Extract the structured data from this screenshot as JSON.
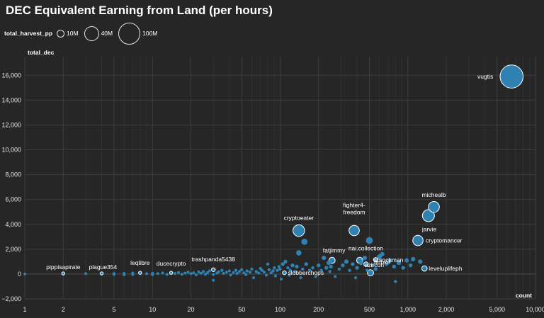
{
  "chart_data": {
    "type": "scatter",
    "title": "DEC Equivalent Earning from Land (per hours)",
    "xlabel": "count",
    "ylabel": "total_dec",
    "x_scale": "log",
    "xlim": [
      1,
      10000
    ],
    "ylim": [
      -2000,
      17500
    ],
    "x_ticks": [
      1,
      2,
      5,
      10,
      20,
      50,
      100,
      200,
      500,
      1000,
      2000,
      5000,
      10000
    ],
    "x_tick_labels": [
      "1",
      "2",
      "5",
      "10",
      "20",
      "50",
      "100",
      "200",
      "500",
      "1,000",
      "2,000",
      "5,000",
      "10,000"
    ],
    "minor_x_ticks": [
      3,
      4,
      6,
      7,
      8,
      9,
      30,
      40,
      60,
      70,
      80,
      90,
      300,
      400,
      600,
      700,
      800,
      900,
      3000,
      4000,
      6000,
      7000,
      8000,
      9000
    ],
    "y_ticks": [
      -2000,
      0,
      2000,
      4000,
      6000,
      8000,
      10000,
      12000,
      14000,
      16000
    ],
    "y_tick_labels": [
      "−2,000",
      "0",
      "2,000",
      "4,000",
      "6,000",
      "8,000",
      "10,000",
      "12,000",
      "14,000",
      "16,000"
    ],
    "grid": true,
    "size_field": "total_harvest_pp",
    "size_legend": {
      "title": "total_harvest_pp",
      "items": [
        {
          "label": "10M",
          "value": 10000000
        },
        {
          "label": "40M",
          "value": 40000000
        },
        {
          "label": "100M",
          "value": 100000000
        }
      ]
    },
    "point_color": "#2e86b8",
    "points": [
      {
        "name": "vugtis",
        "x": 6500,
        "y": 15900,
        "size": 110000000
      },
      {
        "name": "michealb",
        "x": 1600,
        "y": 5400,
        "size": 25000000
      },
      {
        "name": "jarvie",
        "x": 1450,
        "y": 4700,
        "size": 30000000
      },
      {
        "name": "cryptomancer",
        "x": 1200,
        "y": 2700,
        "size": 22000000
      },
      {
        "name": "cryptoeater",
        "x": 140,
        "y": 3500,
        "size": 28000000
      },
      {
        "name": "fighter4-freedom",
        "x": 380,
        "y": 3500,
        "size": 22000000
      },
      {
        "name": "fatjimmy",
        "x": 255,
        "y": 1100,
        "size": 8000000
      },
      {
        "name": "nai.collection",
        "x": 420,
        "y": 1100,
        "size": 8000000
      },
      {
        "name": "abrockman",
        "x": 560,
        "y": 1150,
        "size": 4000000
      },
      {
        "name": "azircon",
        "x": 470,
        "y": 800,
        "size": 4000000
      },
      {
        "name": "nubke",
        "x": 510,
        "y": 100,
        "size": 8000000
      },
      {
        "name": "leveluplifeph",
        "x": 1350,
        "y": 450,
        "size": 6000000
      },
      {
        "name": "slobberchops",
        "x": 108,
        "y": 100,
        "size": 3000000
      },
      {
        "name": "trashpanda5438",
        "x": 30,
        "y": 350,
        "size": 3000000
      },
      {
        "name": "ducecrypto",
        "x": 14,
        "y": 100,
        "size": 2000000
      },
      {
        "name": "leqlibre",
        "x": 8,
        "y": 100,
        "size": 2000000
      },
      {
        "name": "plague354",
        "x": 4,
        "y": 50,
        "size": 2000000
      },
      {
        "name": "pippisapirate",
        "x": 2,
        "y": 50,
        "size": 2000000
      },
      {
        "name": "",
        "x": 1,
        "y": 0,
        "size": 1000000
      },
      {
        "name": "",
        "x": 3,
        "y": 30,
        "size": 1000000
      },
      {
        "name": "",
        "x": 5,
        "y": -30,
        "size": 1000000
      },
      {
        "name": "",
        "x": 5,
        "y": 40,
        "size": 1000000
      },
      {
        "name": "",
        "x": 6,
        "y": 50,
        "size": 1000000
      },
      {
        "name": "",
        "x": 6,
        "y": -60,
        "size": 1000000
      },
      {
        "name": "",
        "x": 7,
        "y": 80,
        "size": 1000000
      },
      {
        "name": "",
        "x": 7,
        "y": -40,
        "size": 1000000
      },
      {
        "name": "",
        "x": 9,
        "y": 30,
        "size": 1000000
      },
      {
        "name": "",
        "x": 10,
        "y": 60,
        "size": 1000000
      },
      {
        "name": "",
        "x": 10,
        "y": -50,
        "size": 1000000
      },
      {
        "name": "",
        "x": 11,
        "y": 40,
        "size": 1000000
      },
      {
        "name": "",
        "x": 12,
        "y": 90,
        "size": 1000000
      },
      {
        "name": "",
        "x": 13,
        "y": -30,
        "size": 1000000
      },
      {
        "name": "",
        "x": 15,
        "y": 50,
        "size": 1000000
      },
      {
        "name": "",
        "x": 16,
        "y": 120,
        "size": 1000000
      },
      {
        "name": "",
        "x": 17,
        "y": -20,
        "size": 1000000
      },
      {
        "name": "",
        "x": 18,
        "y": 80,
        "size": 1000000
      },
      {
        "name": "",
        "x": 19,
        "y": 150,
        "size": 1000000
      },
      {
        "name": "",
        "x": 20,
        "y": 30,
        "size": 1000000
      },
      {
        "name": "",
        "x": 21,
        "y": 100,
        "size": 1000000
      },
      {
        "name": "",
        "x": 22,
        "y": -60,
        "size": 1000000
      },
      {
        "name": "",
        "x": 23,
        "y": 180,
        "size": 1000000
      },
      {
        "name": "",
        "x": 24,
        "y": 60,
        "size": 1000000
      },
      {
        "name": "",
        "x": 25,
        "y": 200,
        "size": 2000000
      },
      {
        "name": "",
        "x": 26,
        "y": -20,
        "size": 1000000
      },
      {
        "name": "",
        "x": 27,
        "y": 120,
        "size": 1000000
      },
      {
        "name": "",
        "x": 28,
        "y": 250,
        "size": 1000000
      },
      {
        "name": "",
        "x": 30,
        "y": -40,
        "size": 1000000
      },
      {
        "name": "",
        "x": 30,
        "y": -500,
        "size": 1000000
      },
      {
        "name": "",
        "x": 32,
        "y": 80,
        "size": 1000000
      },
      {
        "name": "",
        "x": 33,
        "y": 180,
        "size": 1000000
      },
      {
        "name": "",
        "x": 35,
        "y": 300,
        "size": 2000000
      },
      {
        "name": "",
        "x": 36,
        "y": 50,
        "size": 1000000
      },
      {
        "name": "",
        "x": 38,
        "y": 150,
        "size": 1000000
      },
      {
        "name": "",
        "x": 40,
        "y": 250,
        "size": 1000000
      },
      {
        "name": "",
        "x": 41,
        "y": -80,
        "size": 1000000
      },
      {
        "name": "",
        "x": 43,
        "y": 120,
        "size": 1000000
      },
      {
        "name": "",
        "x": 45,
        "y": 300,
        "size": 2000000
      },
      {
        "name": "",
        "x": 46,
        "y": 50,
        "size": 1000000
      },
      {
        "name": "",
        "x": 48,
        "y": 200,
        "size": 1000000
      },
      {
        "name": "",
        "x": 50,
        "y": 350,
        "size": 2000000
      },
      {
        "name": "",
        "x": 52,
        "y": 100,
        "size": 1000000
      },
      {
        "name": "",
        "x": 54,
        "y": -50,
        "size": 1000000
      },
      {
        "name": "",
        "x": 55,
        "y": 250,
        "size": 2000000
      },
      {
        "name": "",
        "x": 58,
        "y": 150,
        "size": 1000000
      },
      {
        "name": "",
        "x": 60,
        "y": 400,
        "size": 2000000
      },
      {
        "name": "",
        "x": 62,
        "y": -300,
        "size": 1000000
      },
      {
        "name": "",
        "x": 65,
        "y": 200,
        "size": 2000000
      },
      {
        "name": "",
        "x": 68,
        "y": 80,
        "size": 1000000
      },
      {
        "name": "",
        "x": 70,
        "y": 450,
        "size": 2000000
      },
      {
        "name": "",
        "x": 72,
        "y": 300,
        "size": 2000000
      },
      {
        "name": "",
        "x": 75,
        "y": 150,
        "size": 1000000
      },
      {
        "name": "",
        "x": 78,
        "y": -100,
        "size": 1000000
      },
      {
        "name": "",
        "x": 80,
        "y": 800,
        "size": 2000000
      },
      {
        "name": "",
        "x": 82,
        "y": 350,
        "size": 2000000
      },
      {
        "name": "",
        "x": 85,
        "y": 100,
        "size": 1000000
      },
      {
        "name": "",
        "x": 88,
        "y": 250,
        "size": 2000000
      },
      {
        "name": "",
        "x": 90,
        "y": 500,
        "size": 2000000
      },
      {
        "name": "",
        "x": 92,
        "y": -150,
        "size": 1000000
      },
      {
        "name": "",
        "x": 95,
        "y": 300,
        "size": 2000000
      },
      {
        "name": "",
        "x": 98,
        "y": 600,
        "size": 2000000
      },
      {
        "name": "",
        "x": 100,
        "y": 400,
        "size": 2000000
      },
      {
        "name": "",
        "x": 102,
        "y": -400,
        "size": 1000000
      },
      {
        "name": "",
        "x": 105,
        "y": 800,
        "size": 3000000
      },
      {
        "name": "",
        "x": 110,
        "y": 1000,
        "size": 3000000
      },
      {
        "name": "",
        "x": 115,
        "y": 500,
        "size": 2000000
      },
      {
        "name": "",
        "x": 118,
        "y": -100,
        "size": 1000000
      },
      {
        "name": "",
        "x": 120,
        "y": 300,
        "size": 2000000
      },
      {
        "name": "",
        "x": 125,
        "y": 700,
        "size": 3000000
      },
      {
        "name": "",
        "x": 130,
        "y": 200,
        "size": 2000000
      },
      {
        "name": "",
        "x": 135,
        "y": 600,
        "size": 3000000
      },
      {
        "name": "",
        "x": 140,
        "y": 1700,
        "size": 6000000
      },
      {
        "name": "",
        "x": 145,
        "y": -300,
        "size": 1000000
      },
      {
        "name": "",
        "x": 150,
        "y": 400,
        "size": 2000000
      },
      {
        "name": "",
        "x": 155,
        "y": 2600,
        "size": 8000000
      },
      {
        "name": "",
        "x": 160,
        "y": 800,
        "size": 3000000
      },
      {
        "name": "",
        "x": 170,
        "y": 300,
        "size": 2000000
      },
      {
        "name": "",
        "x": 180,
        "y": 500,
        "size": 2000000
      },
      {
        "name": "",
        "x": 190,
        "y": -200,
        "size": 1000000
      },
      {
        "name": "",
        "x": 200,
        "y": 700,
        "size": 3000000
      },
      {
        "name": "",
        "x": 210,
        "y": 300,
        "size": 2000000
      },
      {
        "name": "",
        "x": 220,
        "y": 1300,
        "size": 4000000
      },
      {
        "name": "",
        "x": 230,
        "y": 500,
        "size": 3000000
      },
      {
        "name": "",
        "x": 240,
        "y": 900,
        "size": 4000000
      },
      {
        "name": "",
        "x": 245,
        "y": 200,
        "size": 2000000
      },
      {
        "name": "",
        "x": 250,
        "y": 600,
        "size": 3000000
      },
      {
        "name": "",
        "x": 270,
        "y": -200,
        "size": 1000000
      },
      {
        "name": "",
        "x": 290,
        "y": 400,
        "size": 2000000
      },
      {
        "name": "",
        "x": 310,
        "y": 700,
        "size": 3000000
      },
      {
        "name": "",
        "x": 330,
        "y": 1000,
        "size": 4000000
      },
      {
        "name": "",
        "x": 350,
        "y": 300,
        "size": 2000000
      },
      {
        "name": "",
        "x": 370,
        "y": 800,
        "size": 3000000
      },
      {
        "name": "",
        "x": 390,
        "y": -300,
        "size": 1000000
      },
      {
        "name": "",
        "x": 400,
        "y": 500,
        "size": 3000000
      },
      {
        "name": "",
        "x": 430,
        "y": 900,
        "size": 4000000
      },
      {
        "name": "",
        "x": 460,
        "y": 1300,
        "size": 4000000
      },
      {
        "name": "",
        "x": 480,
        "y": 300,
        "size": 2000000
      },
      {
        "name": "",
        "x": 500,
        "y": 2700,
        "size": 10000000
      },
      {
        "name": "",
        "x": 530,
        "y": 700,
        "size": 3000000
      },
      {
        "name": "",
        "x": 560,
        "y": 400,
        "size": 3000000
      },
      {
        "name": "",
        "x": 600,
        "y": 1400,
        "size": 5000000
      },
      {
        "name": "",
        "x": 630,
        "y": 1600,
        "size": 4000000
      },
      {
        "name": "",
        "x": 680,
        "y": 800,
        "size": 3000000
      },
      {
        "name": "",
        "x": 720,
        "y": 1100,
        "size": 4000000
      },
      {
        "name": "",
        "x": 780,
        "y": 600,
        "size": 3000000
      },
      {
        "name": "",
        "x": 800,
        "y": -600,
        "size": 2000000
      },
      {
        "name": "",
        "x": 850,
        "y": 900,
        "size": 4000000
      },
      {
        "name": "",
        "x": 920,
        "y": 500,
        "size": 3000000
      },
      {
        "name": "",
        "x": 980,
        "y": 1100,
        "size": 4000000
      },
      {
        "name": "",
        "x": 1050,
        "y": 700,
        "size": 3000000
      },
      {
        "name": "",
        "x": 1100,
        "y": 1200,
        "size": 4000000
      },
      {
        "name": "",
        "x": 1250,
        "y": 1000,
        "size": 4000000
      }
    ]
  }
}
